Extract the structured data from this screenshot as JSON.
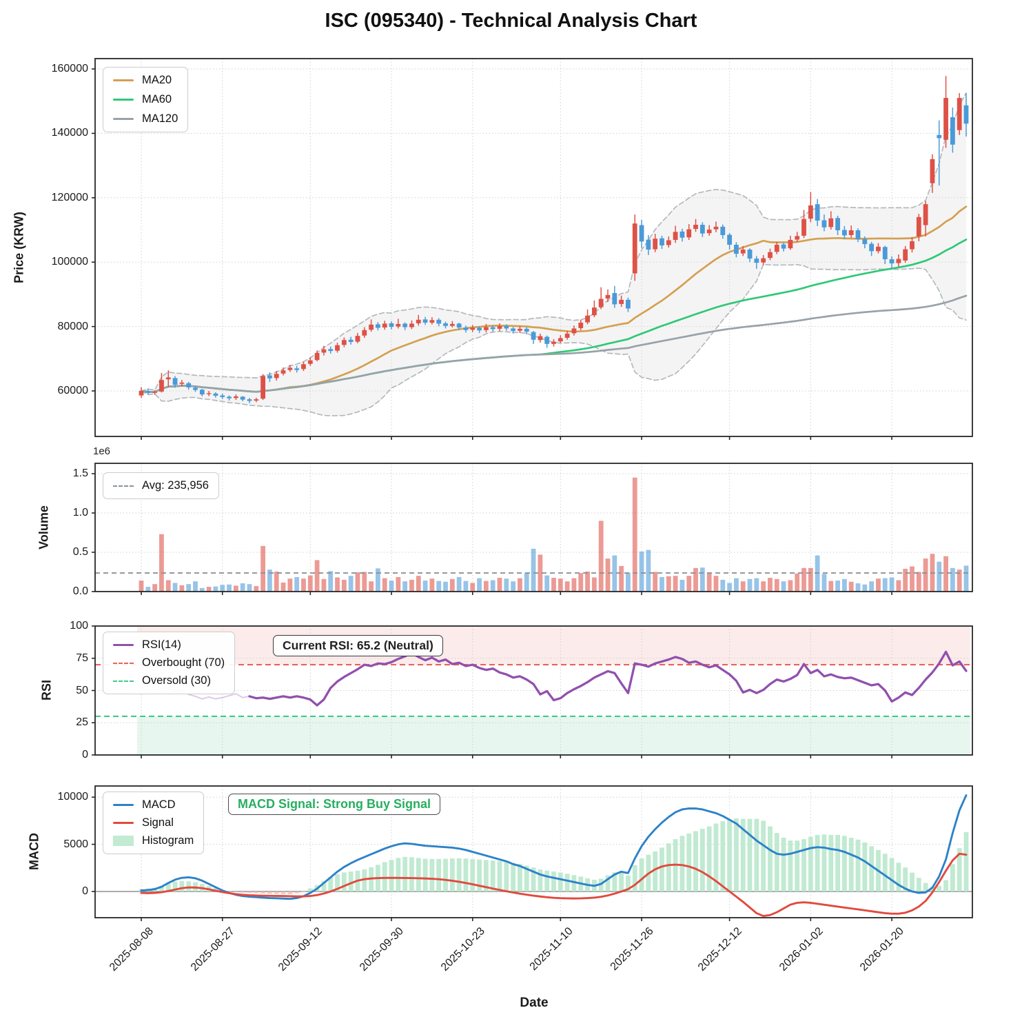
{
  "title": "ISC (095340) - Technical Analysis Chart",
  "xlabel": "Date",
  "colors": {
    "candle_up": "#de5146",
    "candle_down": "#4b9ad8",
    "ma20": "#d4a04f",
    "ma60": "#2fc876",
    "ma120": "#98a2a8",
    "bollinger": "#b4b9bc",
    "bollinger_fill": "#d9dcde",
    "rsi_line": "#9150ad",
    "overbought": "#e8635a",
    "oversold": "#41c98a",
    "overbought_zone": "#f2b8b4",
    "oversold_zone": "#a9dfc4",
    "macd_line": "#2c82c9",
    "signal_line": "#e2493d",
    "histogram": "#b5e6c9",
    "histogram_negative": "#f4b8b0",
    "avg_line": "#8a9399",
    "annotation_green": "#27ae60",
    "grid": "#cfcfcf",
    "panel_border": "#262626"
  },
  "panels": {
    "price": {
      "ylabel": "Price (KRW)",
      "ytick_labels": [
        "160000",
        "140000",
        "120000",
        "100000",
        "80000",
        "60000"
      ],
      "ytick_values": [
        160000,
        140000,
        120000,
        100000,
        80000,
        60000
      ],
      "legend": [
        "MA20",
        "MA60",
        "MA120"
      ]
    },
    "volume": {
      "ylabel": "Volume",
      "scale_label": "1e6",
      "ytick_labels": [
        "1.5",
        "1.0",
        "0.5",
        "0.0"
      ],
      "ytick_values": [
        1500000,
        1000000,
        500000,
        0
      ],
      "legend": "Avg: 235,956",
      "average": 235956
    },
    "rsi": {
      "ylabel": "RSI",
      "ytick_labels": [
        "100",
        "75",
        "50",
        "25",
        "0"
      ],
      "ytick_values": [
        100,
        75,
        50,
        25,
        0
      ],
      "legend": [
        "RSI(14)",
        "Overbought (70)",
        "Oversold (30)"
      ],
      "annotation": "Current RSI: 65.2 (Neutral)",
      "overbought_level": 70,
      "oversold_level": 30,
      "current_rsi": 65.2
    },
    "macd": {
      "ylabel": "MACD",
      "ytick_labels": [
        "10000",
        "5000",
        "0"
      ],
      "ytick_values": [
        10000,
        5000,
        0
      ],
      "legend": [
        "MACD",
        "Signal",
        "Histogram"
      ],
      "annotation": "MACD Signal: Strong Buy Signal"
    }
  },
  "chart_data": {
    "type": "candlestick+indicators",
    "title": "ISC (095340) - Technical Analysis Chart",
    "xlabel": "Date",
    "x_tick_labels": [
      "2025-08-08",
      "2025-08-27",
      "2025-09-12",
      "2025-09-30",
      "2025-10-23",
      "2025-11-10",
      "2025-11-26",
      "2025-12-12",
      "2026-01-02",
      "2026-01-20"
    ],
    "x_tick_indices": [
      0,
      12,
      25,
      37,
      49,
      62,
      74,
      87,
      99,
      111
    ],
    "price_ylim": [
      46000,
      163000
    ],
    "volume_ylim": [
      0,
      1630000
    ],
    "rsi_ylim": [
      0,
      100
    ],
    "macd_ylim": [
      -2800,
      11200
    ],
    "ma_windows": [
      20,
      60,
      120
    ],
    "bollinger_window": 20,
    "bollinger_k": 2,
    "open": [
      58600,
      60000,
      59400,
      59800,
      63600,
      64000,
      62200,
      62400,
      61000,
      60400,
      59000,
      59200,
      58600,
      58200,
      57800,
      58200,
      57400,
      57000,
      57600,
      64800,
      64000,
      65400,
      66500,
      67000,
      66800,
      68400,
      69600,
      71900,
      73000,
      72500,
      74300,
      75900,
      75300,
      77200,
      79000,
      80700,
      79700,
      81000,
      80000,
      80900,
      79800,
      81000,
      82200,
      81200,
      82100,
      81000,
      80200,
      80900,
      79700,
      79000,
      79600,
      78900,
      79800,
      79300,
      80200,
      79400,
      78700,
      79300,
      78300,
      75800,
      76800,
      74600,
      75400,
      76500,
      77900,
      79500,
      81300,
      83500,
      86000,
      88700,
      90400,
      87000,
      88300,
      96500,
      111500,
      107000,
      104000,
      107400,
      105300,
      106900,
      109500,
      107700,
      110300,
      111600,
      109000,
      110200,
      111000,
      108500,
      105400,
      102700,
      103900,
      101100,
      99900,
      101300,
      103200,
      105500,
      104300,
      107000,
      108200,
      113500,
      118000,
      113000,
      110900,
      113700,
      110000,
      108400,
      109900,
      107200,
      105700,
      103400,
      104700,
      100900,
      99700,
      100500,
      104000,
      108000,
      111500,
      124500,
      139500,
      138000,
      145000,
      141000,
      148700
    ],
    "close": [
      60000,
      59400,
      59700,
      63400,
      64200,
      61900,
      62600,
      61100,
      60300,
      58900,
      59300,
      58500,
      58100,
      57700,
      58300,
      57300,
      56900,
      57400,
      64600,
      63900,
      65300,
      66400,
      67200,
      66500,
      68300,
      69500,
      71800,
      72900,
      72400,
      74200,
      75800,
      75200,
      77100,
      78900,
      80600,
      79600,
      80900,
      79900,
      80800,
      79800,
      80900,
      82100,
      81200,
      82000,
      80900,
      80200,
      80800,
      79700,
      78900,
      79600,
      78800,
      79800,
      79200,
      80100,
      79400,
      78600,
      79300,
      78400,
      75900,
      77000,
      74600,
      75300,
      76400,
      77800,
      79400,
      81200,
      83400,
      85900,
      88600,
      89800,
      86900,
      88300,
      85600,
      112000,
      106400,
      103900,
      107300,
      105200,
      106800,
      109400,
      107600,
      110200,
      111600,
      108900,
      110100,
      111000,
      108400,
      105400,
      102600,
      103900,
      101100,
      99800,
      101200,
      103100,
      105400,
      104200,
      106900,
      108100,
      113400,
      117600,
      112900,
      110800,
      113600,
      109900,
      108300,
      109900,
      107100,
      105600,
      103400,
      104800,
      100900,
      99600,
      101000,
      104000,
      106500,
      114000,
      118000,
      132000,
      138500,
      151000,
      136500,
      151000,
      143000
    ],
    "high": [
      61200,
      60800,
      60200,
      65600,
      66400,
      64600,
      63400,
      62800,
      61600,
      60600,
      60000,
      59600,
      59200,
      58600,
      58900,
      58400,
      57800,
      57900,
      65200,
      65800,
      66200,
      67300,
      68100,
      67800,
      69000,
      70400,
      72600,
      74000,
      73800,
      75000,
      76600,
      76800,
      78000,
      79800,
      82200,
      81400,
      81800,
      81600,
      82400,
      81300,
      81900,
      83600,
      83000,
      82900,
      82600,
      81500,
      81700,
      81200,
      80300,
      80500,
      80100,
      80800,
      80400,
      81000,
      80700,
      79900,
      80200,
      79800,
      78600,
      77800,
      77200,
      76100,
      77300,
      78700,
      80300,
      82100,
      85300,
      88100,
      92200,
      91500,
      92600,
      89600,
      89000,
      114800,
      113200,
      108400,
      108800,
      108200,
      108000,
      111300,
      110400,
      111800,
      113400,
      112400,
      111500,
      112600,
      111700,
      109000,
      106200,
      105000,
      104300,
      101900,
      102200,
      104200,
      106300,
      106100,
      108200,
      109400,
      116200,
      121800,
      119600,
      114800,
      115800,
      114400,
      111200,
      111400,
      110500,
      108000,
      106300,
      105900,
      105100,
      101800,
      102400,
      105000,
      107800,
      115000,
      119000,
      133500,
      144000,
      157800,
      148000,
      152500,
      152500
    ],
    "low": [
      57800,
      58900,
      58800,
      59500,
      61200,
      61000,
      61400,
      60400,
      59700,
      58300,
      58400,
      57900,
      57500,
      57000,
      57200,
      56800,
      56200,
      56500,
      57200,
      62800,
      63200,
      64800,
      65900,
      65700,
      66200,
      67800,
      69200,
      71000,
      71600,
      71900,
      73600,
      74400,
      74800,
      76500,
      78400,
      78800,
      79000,
      79100,
      79400,
      78900,
      79200,
      80300,
      80500,
      80600,
      80100,
      79400,
      79700,
      78900,
      78100,
      78300,
      78000,
      78200,
      78400,
      78600,
      78700,
      77800,
      78000,
      77600,
      74600,
      75000,
      73400,
      73800,
      74900,
      75900,
      77200,
      78800,
      80700,
      82900,
      85400,
      87600,
      85800,
      86100,
      84500,
      94200,
      104400,
      102200,
      103100,
      104100,
      104500,
      106000,
      106400,
      106900,
      109400,
      107800,
      108200,
      109300,
      107300,
      103900,
      101500,
      101900,
      100000,
      97900,
      99000,
      100600,
      102500,
      103300,
      103800,
      106200,
      107500,
      112400,
      111200,
      109600,
      110100,
      108400,
      107100,
      107600,
      106200,
      104300,
      101900,
      102700,
      99400,
      97900,
      98600,
      99800,
      103000,
      106500,
      108000,
      121500,
      123800,
      135500,
      134000,
      139500,
      139000
    ],
    "volume": [
      140000,
      60000,
      95000,
      730000,
      145000,
      110000,
      80000,
      95000,
      130000,
      45000,
      60000,
      65000,
      85000,
      90000,
      75000,
      105000,
      95000,
      70000,
      580000,
      280000,
      255000,
      115000,
      165000,
      185000,
      165000,
      205000,
      400000,
      160000,
      260000,
      180000,
      150000,
      200000,
      245000,
      250000,
      130000,
      295000,
      170000,
      140000,
      185000,
      130000,
      150000,
      200000,
      140000,
      165000,
      135000,
      125000,
      160000,
      185000,
      135000,
      110000,
      170000,
      135000,
      145000,
      175000,
      165000,
      130000,
      170000,
      235000,
      545000,
      470000,
      205000,
      175000,
      165000,
      130000,
      170000,
      235000,
      255000,
      180000,
      900000,
      420000,
      460000,
      325000,
      240000,
      1450000,
      510000,
      530000,
      250000,
      185000,
      195000,
      200000,
      150000,
      200000,
      300000,
      305000,
      240000,
      200000,
      150000,
      110000,
      170000,
      130000,
      160000,
      170000,
      130000,
      175000,
      160000,
      130000,
      145000,
      230000,
      300000,
      300000,
      460000,
      225000,
      135000,
      140000,
      160000,
      125000,
      105000,
      90000,
      130000,
      165000,
      170000,
      180000,
      145000,
      290000,
      320000,
      250000,
      420000,
      480000,
      380000,
      450000,
      300000,
      280000,
      330000
    ],
    "rsi_solid_start": 16,
    "rsi": [
      null,
      null,
      null,
      51.5,
      52.5,
      49.5,
      50.5,
      47,
      45.5,
      43.5,
      45,
      43.5,
      44.5,
      46,
      47.5,
      44.5,
      45.5,
      44,
      44.5,
      43.5,
      44.5,
      45.5,
      44.5,
      45.5,
      44.5,
      43,
      38.5,
      43,
      52,
      57,
      60.5,
      63.5,
      66.5,
      70,
      69,
      71,
      70.5,
      72,
      74.5,
      76.5,
      79,
      76,
      73.5,
      75.5,
      72.5,
      74,
      70.5,
      71.5,
      69,
      70,
      67.5,
      66,
      67,
      64,
      62.5,
      60,
      61,
      58.5,
      55,
      47,
      49.5,
      42.5,
      44,
      48,
      51,
      53.5,
      56.5,
      60,
      62.5,
      65,
      63.5,
      55.5,
      48,
      71,
      70,
      68.5,
      71,
      72.5,
      74,
      76,
      74.5,
      71.5,
      72.5,
      70,
      68,
      69.5,
      66,
      62.5,
      57.5,
      48.5,
      50.5,
      48,
      50.5,
      55,
      58.5,
      57,
      59,
      62,
      70.5,
      63.5,
      66,
      61,
      62.5,
      60.5,
      59.5,
      60,
      58,
      56,
      54,
      55,
      50,
      41.5,
      44.5,
      48.5,
      46.5,
      52,
      58.5,
      64,
      71,
      80,
      69.5,
      72.5,
      65.2
    ],
    "macd": [
      100,
      150,
      250,
      500,
      900,
      1250,
      1450,
      1500,
      1400,
      1150,
      800,
      450,
      100,
      -150,
      -350,
      -480,
      -550,
      -600,
      -650,
      -700,
      -720,
      -750,
      -780,
      -700,
      -500,
      -150,
      300,
      900,
      1500,
      2100,
      2600,
      3000,
      3350,
      3650,
      3950,
      4250,
      4550,
      4800,
      5000,
      5100,
      5050,
      4950,
      4850,
      4800,
      4750,
      4700,
      4650,
      4550,
      4400,
      4200,
      4000,
      3800,
      3600,
      3400,
      3200,
      2900,
      2700,
      2400,
      2100,
      1800,
      1600,
      1450,
      1300,
      1150,
      1000,
      850,
      700,
      600,
      800,
      1300,
      1800,
      2100,
      1950,
      3500,
      4800,
      5800,
      6600,
      7300,
      7900,
      8400,
      8700,
      8800,
      8800,
      8700,
      8500,
      8300,
      8000,
      7600,
      7200,
      6600,
      6000,
      5400,
      4900,
      4400,
      4000,
      3900,
      4000,
      4200,
      4400,
      4600,
      4700,
      4650,
      4500,
      4400,
      4200,
      3900,
      3600,
      3200,
      2700,
      2200,
      1700,
      1200,
      700,
      300,
      0,
      -150,
      -100,
      400,
      1600,
      3400,
      6200,
      8600,
      10200
    ],
    "signal": [
      -150,
      -180,
      -150,
      -80,
      50,
      200,
      350,
      430,
      420,
      350,
      230,
      80,
      -60,
      -180,
      -280,
      -350,
      -400,
      -430,
      -450,
      -460,
      -470,
      -480,
      -500,
      -520,
      -520,
      -480,
      -380,
      -220,
      0,
      280,
      580,
      880,
      1150,
      1300,
      1380,
      1420,
      1440,
      1450,
      1440,
      1430,
      1420,
      1400,
      1380,
      1350,
      1300,
      1230,
      1140,
      1030,
      900,
      760,
      610,
      460,
      310,
      160,
      20,
      -110,
      -230,
      -340,
      -440,
      -530,
      -610,
      -670,
      -710,
      -730,
      -740,
      -730,
      -700,
      -650,
      -560,
      -420,
      -230,
      0,
      250,
      700,
      1300,
      1900,
      2350,
      2650,
      2800,
      2850,
      2800,
      2650,
      2400,
      2050,
      1600,
      1100,
      550,
      0,
      -550,
      -1100,
      -1700,
      -2300,
      -2600,
      -2500,
      -2200,
      -1800,
      -1400,
      -1200,
      -1150,
      -1200,
      -1300,
      -1400,
      -1500,
      -1600,
      -1700,
      -1800,
      -1900,
      -2000,
      -2100,
      -2200,
      -2300,
      -2350,
      -2350,
      -2250,
      -2000,
      -1600,
      -1000,
      -100,
      1000,
      2200,
      3300,
      4000,
      3900
    ]
  }
}
